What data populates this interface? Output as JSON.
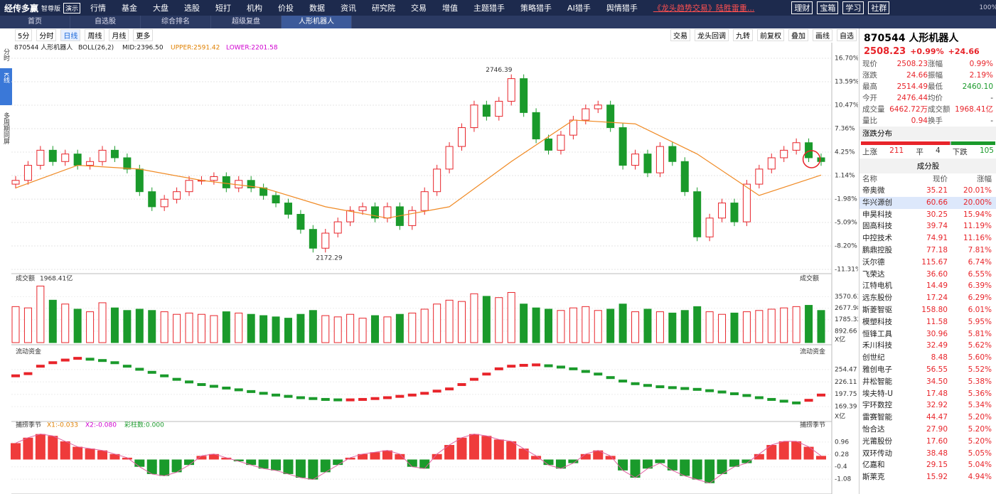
{
  "menu": {
    "logo": "经传多赢",
    "edition": "智尊版",
    "demo": "演示",
    "items": [
      "行情",
      "基金",
      "大盘",
      "选股",
      "短打",
      "机构",
      "价投",
      "数据",
      "资讯",
      "研究院",
      "交易",
      "增值",
      "主题猎手",
      "策略猎手",
      "AI猎手",
      "舆情猎手"
    ],
    "promo": "《龙头趋势交易》陆胜雷重...",
    "right_buttons": [
      "理财",
      "宝箱",
      "学习",
      "社群"
    ],
    "zoom": "100%"
  },
  "tabs": [
    "首页",
    "自选股",
    "综合排名",
    "超级复盘",
    "人形机器人"
  ],
  "toolbar": {
    "periods": [
      "5分",
      "分时",
      "日线",
      "周线",
      "月线",
      "更多"
    ],
    "tools": [
      "交易",
      "龙头回调",
      "九转",
      "前复权",
      "叠加",
      "画线",
      "自选"
    ]
  },
  "side_tabs": [
    "分时",
    "K线",
    "多周期同屏"
  ],
  "chart": {
    "header": {
      "code": "870544 人形机器人",
      "indicator": "BOLL(26,2)",
      "mid": "MID:2396.50",
      "upper": "UPPER:2591.42",
      "lower": "LOWER:2201.58"
    },
    "ylim": [
      -11.31,
      16.7
    ],
    "yticks": [
      {
        "value": 16.7,
        "label": "16.70%"
      },
      {
        "value": 13.59,
        "label": "13.59%"
      },
      {
        "value": 10.47,
        "label": "10.47%"
      },
      {
        "value": 7.36,
        "label": "7.36%"
      },
      {
        "value": 4.25,
        "label": "4.25%"
      },
      {
        "value": 1.14,
        "label": "1.14%"
      },
      {
        "value": -1.98,
        "label": "-1.98%"
      },
      {
        "value": -5.09,
        "label": "-5.09%"
      },
      {
        "value": -8.2,
        "label": "-8.20%"
      },
      {
        "value": -11.31,
        "label": "-11.31%"
      }
    ],
    "high_label": "2746.39",
    "low_label": "2172.29",
    "closes": [
      0.5,
      2.5,
      4.5,
      3.0,
      4.0,
      2.5,
      3.0,
      4.5,
      3.5,
      2.0,
      -1.0,
      -3.0,
      -2.0,
      -1.0,
      0.5,
      0.5,
      1.0,
      -0.5,
      0.5,
      -0.5,
      -1.5,
      -2.5,
      -4.0,
      -6.0,
      -8.5,
      -6.5,
      -5.0,
      -3.5,
      -3.0,
      -4.5,
      -3.0,
      -5.5,
      -3.5,
      -1.0,
      2.0,
      5.0,
      7.5,
      10.5,
      9.0,
      11.0,
      14.0,
      9.5,
      6.0,
      4.5,
      6.5,
      8.5,
      10.0,
      10.5,
      7.5,
      2.5,
      4.0,
      1.5,
      5.0,
      3.0,
      -1.0,
      -7.0,
      -4.5,
      -2.5,
      -5.0,
      0.0,
      2.0,
      3.5,
      4.5,
      5.5,
      3.5,
      3.0
    ],
    "mid_line": {
      "x": [
        0,
        5,
        10,
        15,
        20,
        25,
        30,
        35,
        40,
        45,
        50,
        55,
        60,
        65
      ],
      "values": [
        -0.5,
        2.5,
        2.0,
        0.5,
        -0.5,
        -3.0,
        -4.5,
        -3.0,
        3.0,
        8.5,
        8.0,
        4.0,
        -1.5,
        1.2
      ]
    }
  },
  "volume": {
    "title": "成交额",
    "total": "1968.41亿",
    "unit": "X亿",
    "ylim": [
      0,
      4700
    ],
    "yticks": [
      3570.63,
      2677.98,
      1785.32,
      892.66
    ],
    "values": [
      2800,
      2700,
      4400,
      3300,
      3000,
      2600,
      2400,
      3100,
      2700,
      2500,
      2600,
      2500,
      2400,
      2200,
      2300,
      2200,
      2100,
      2400,
      2300,
      2200,
      2100,
      2000,
      1900,
      2200,
      2500,
      2100,
      2000,
      2200,
      1900,
      2100,
      2000,
      2200,
      2300,
      2600,
      3000,
      3300,
      3200,
      3800,
      3600,
      3500,
      3900,
      3000,
      2700,
      2600,
      2500,
      2700,
      2800,
      2500,
      2600,
      3000,
      2400,
      2600,
      2400,
      2300,
      2500,
      2800,
      2400,
      2200,
      2300,
      2400,
      2500,
      2600,
      2700,
      2800,
      2900,
      2500
    ]
  },
  "flow": {
    "title": "流动资金",
    "unit": "X亿",
    "ylim": [
      140.4,
      286.7
    ],
    "yticks": [
      254.47,
      226.11,
      197.75,
      169.39
    ],
    "values": [
      240,
      245,
      262,
      270,
      276,
      280,
      278,
      275,
      270,
      262,
      255,
      248,
      240,
      232,
      226,
      220,
      216,
      212,
      208,
      204,
      200,
      196,
      193,
      190,
      188,
      186,
      185,
      185,
      186,
      188,
      190,
      193,
      196,
      200,
      205,
      210,
      220,
      232,
      244,
      256,
      262,
      264,
      265,
      263,
      260,
      256,
      250,
      244,
      236,
      228,
      222,
      218,
      215,
      213,
      211,
      209,
      206,
      203,
      199,
      195,
      190,
      186,
      182,
      178,
      184,
      196
    ]
  },
  "osc": {
    "title": "捕捞季节",
    "x1": "X1:-0.033",
    "x2": "X2:-0.080",
    "bars": "彩柱数:0.000",
    "ylim": [
      -1.78,
      1.7
    ],
    "yticks": [
      0.96,
      0.28,
      -0.4,
      -1.08
    ],
    "values": [
      0.9,
      1.2,
      1.4,
      1.3,
      1.0,
      0.7,
      0.6,
      0.5,
      0.3,
      0.1,
      -0.4,
      -0.8,
      -0.9,
      -0.7,
      -0.3,
      0.2,
      0.3,
      0.1,
      -0.1,
      -0.3,
      -0.5,
      -0.6,
      -0.8,
      -1.0,
      -1.1,
      -0.7,
      -0.3,
      0.1,
      0.3,
      0.4,
      0.5,
      0.3,
      -0.4,
      -0.5,
      0.3,
      0.8,
      1.2,
      1.4,
      1.3,
      1.1,
      1.0,
      0.6,
      0.2,
      -0.3,
      -0.5,
      -0.2,
      0.3,
      0.5,
      0.2,
      -0.6,
      -1.0,
      -0.5,
      -0.2,
      -0.6,
      -0.9,
      -1.1,
      -1.3,
      -0.8,
      -0.4,
      -0.2,
      0.3,
      0.8,
      1.0,
      1.0,
      0.7,
      0.2
    ]
  },
  "quote": {
    "title": "870544 人形机器人",
    "price": "2508.23",
    "pct": "+0.99%",
    "chg": "+24.66",
    "rows": [
      [
        "现价",
        "2508.23",
        "涨幅",
        "0.99%"
      ],
      [
        "涨跌",
        "24.66",
        "振幅",
        "2.19%"
      ],
      [
        "最高",
        "2514.49",
        "最低",
        "2460.10"
      ],
      [
        "今开",
        "2476.44",
        "均价",
        "-"
      ],
      [
        "成交量",
        "6462.72万",
        "成交额",
        "1968.41亿"
      ],
      [
        "量比",
        "0.94",
        "换手",
        "-"
      ]
    ],
    "dist_title": "涨跌分布",
    "dist": [
      "上涨",
      "211",
      "平",
      "4",
      "下跌",
      "105"
    ],
    "list_title": "成分股",
    "list_header": [
      "名称",
      "现价",
      "涨幅"
    ],
    "stocks": [
      [
        "帝奥微",
        "35.21",
        "20.01%"
      ],
      [
        "华兴源创",
        "60.66",
        "20.00%"
      ],
      [
        "申昊科技",
        "30.25",
        "15.94%"
      ],
      [
        "固高科技",
        "39.74",
        "11.19%"
      ],
      [
        "中控技术",
        "74.91",
        "11.16%"
      ],
      [
        "鹏鼎控股",
        "77.18",
        "7.81%"
      ],
      [
        "沃尔德",
        "115.67",
        "6.74%"
      ],
      [
        "飞荣达",
        "36.60",
        "6.55%"
      ],
      [
        "江特电机",
        "14.49",
        "6.39%"
      ],
      [
        "远东股份",
        "17.24",
        "6.29%"
      ],
      [
        "斯菱智驱",
        "158.80",
        "6.01%"
      ],
      [
        "模塑科技",
        "11.58",
        "5.95%"
      ],
      [
        "恒锋工具",
        "30.96",
        "5.81%"
      ],
      [
        "禾川科技",
        "32.49",
        "5.62%"
      ],
      [
        "创世纪",
        "8.48",
        "5.60%"
      ],
      [
        "雅创电子",
        "56.55",
        "5.52%"
      ],
      [
        "井松智能",
        "34.50",
        "5.38%"
      ],
      [
        "埃夫特-U",
        "17.48",
        "5.36%"
      ],
      [
        "宇环数控",
        "32.92",
        "5.34%"
      ],
      [
        "雷赛智能",
        "44.47",
        "5.20%"
      ],
      [
        "怡合达",
        "27.90",
        "5.20%"
      ],
      [
        "光莆股份",
        "17.60",
        "5.20%"
      ],
      [
        "双环传动",
        "38.48",
        "5.05%"
      ],
      [
        "亿嘉和",
        "29.15",
        "5.04%"
      ],
      [
        "斯莱克",
        "15.92",
        "4.94%"
      ]
    ]
  }
}
